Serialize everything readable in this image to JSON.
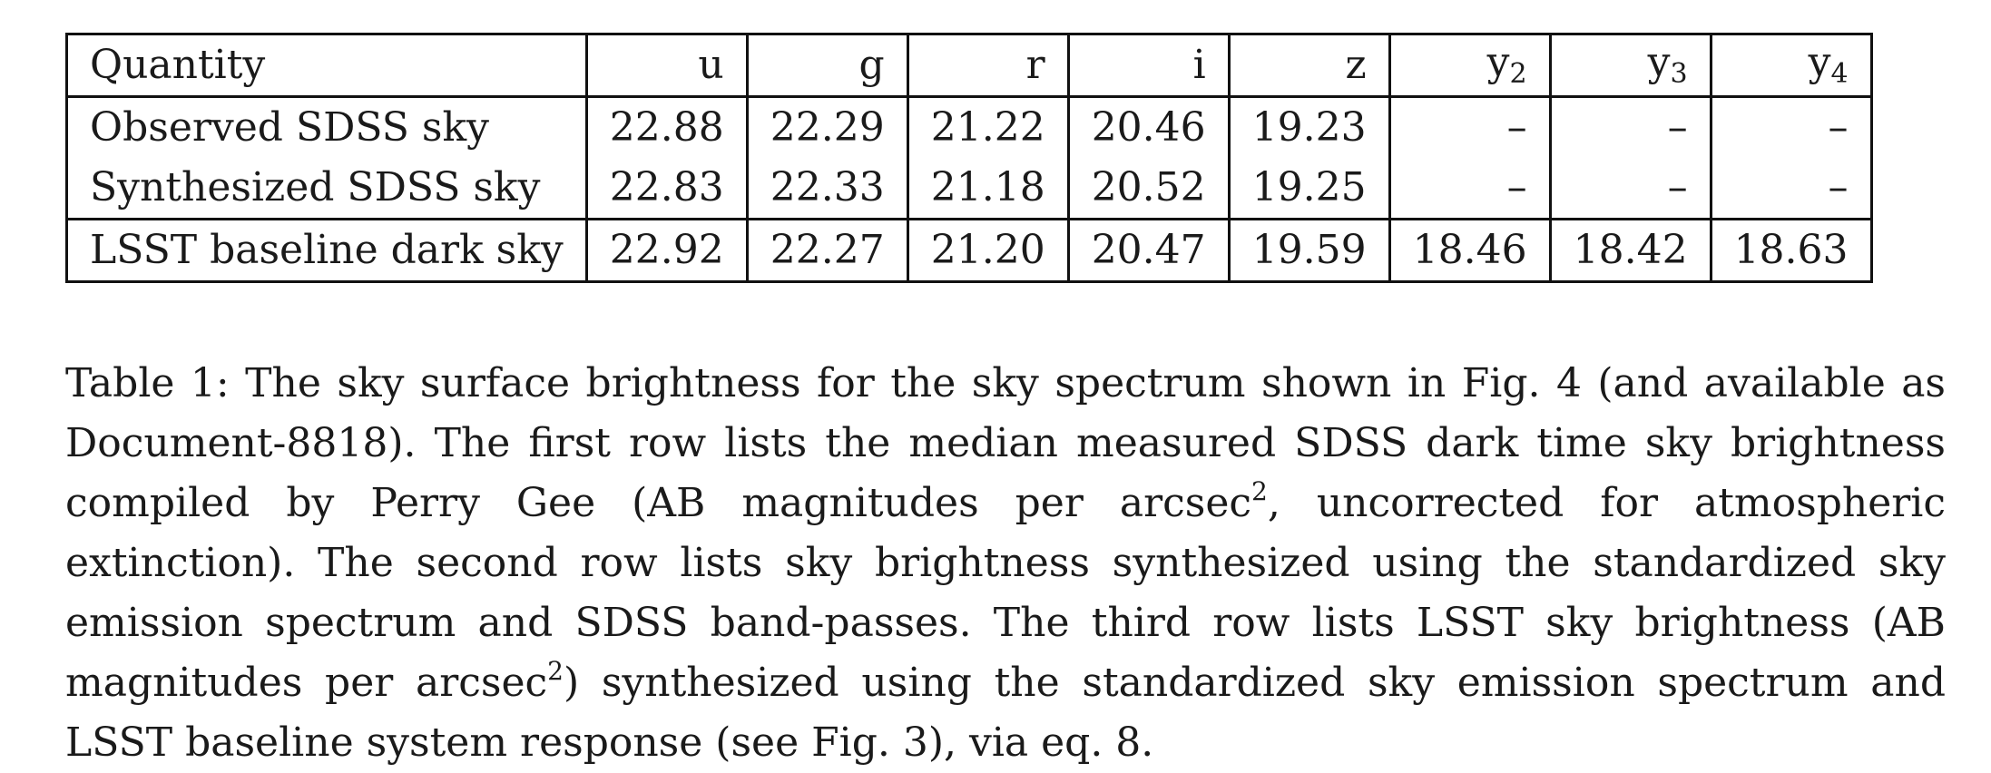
{
  "table": {
    "header": {
      "quantity": "Quantity",
      "u": "u",
      "g": "g",
      "r": "r",
      "i": "i",
      "z": "z",
      "y2_base": "y",
      "y2_sub": "2",
      "y3_base": "y",
      "y3_sub": "3",
      "y4_base": "y",
      "y4_sub": "4"
    },
    "rows": [
      {
        "label": "Observed SDSS sky",
        "u": "22.88",
        "g": "22.29",
        "r": "21.22",
        "i": "20.46",
        "z": "19.23",
        "y2": "–",
        "y3": "–",
        "y4": "–"
      },
      {
        "label": "Synthesized SDSS sky",
        "u": "22.83",
        "g": "22.33",
        "r": "21.18",
        "i": "20.52",
        "z": "19.25",
        "y2": "–",
        "y3": "–",
        "y4": "–"
      },
      {
        "label": "LSST baseline dark sky",
        "u": "22.92",
        "g": "22.27",
        "r": "21.20",
        "i": "20.47",
        "z": "19.59",
        "y2": "18.46",
        "y3": "18.42",
        "y4": "18.63"
      }
    ]
  },
  "caption": {
    "part1": "Table 1: The sky surface brightness for the sky spectrum shown in Fig. 4 (and available as Document-8818). The first row lists the median measured SDSS dark time sky brightness compiled by Perry Gee (AB magnitudes per arcsec",
    "sup1": "2",
    "part2": ", uncorrected for atmospheric extinction). The second row lists sky brightness synthesized using the standardized sky emission spectrum and SDSS band-passes. The third row lists LSST sky brightness (AB magnitudes per arcsec",
    "sup2": "2",
    "part3": ") synthesized using the standardized sky emission spectrum and LSST baseline system response (see Fig. 3), via eq. 8."
  }
}
